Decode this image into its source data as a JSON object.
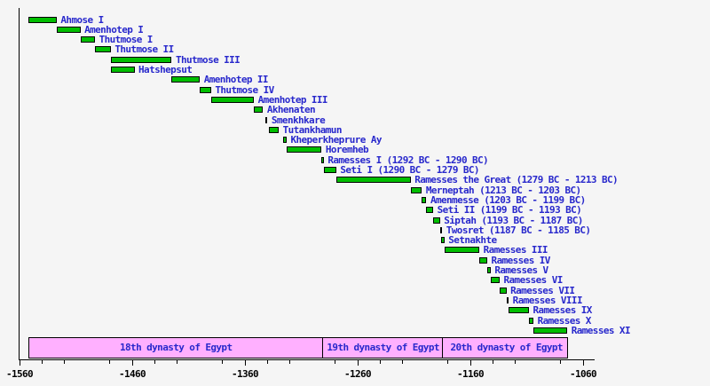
{
  "chart_data": {
    "type": "bar",
    "subtype": "gantt-timeline",
    "title": "",
    "xlabel": "",
    "ylabel": "",
    "grid": false,
    "legend": "none",
    "x_axis": {
      "min": -1560,
      "max": -1050,
      "major_ticks": [
        -1560,
        -1460,
        -1360,
        -1260,
        -1160,
        -1060
      ],
      "tick_labels": [
        "-1560",
        "-1460",
        "-1360",
        "-1260",
        "-1160",
        "-1060"
      ],
      "minor_tick_step": 20
    },
    "pharaohs": [
      {
        "label": "Ahmose I",
        "start": -1552,
        "end": -1527
      },
      {
        "label": "Amenhotep I",
        "start": -1527,
        "end": -1506
      },
      {
        "label": "Thutmose I",
        "start": -1506,
        "end": -1493
      },
      {
        "label": "Thutmose II",
        "start": -1493,
        "end": -1479
      },
      {
        "label": "Thutmose III",
        "start": -1479,
        "end": -1425
      },
      {
        "label": "Hatshepsut",
        "start": -1479,
        "end": -1458
      },
      {
        "label": "Amenhotep II",
        "start": -1425,
        "end": -1400
      },
      {
        "label": "Thutmose IV",
        "start": -1400,
        "end": -1390
      },
      {
        "label": "Amenhotep III",
        "start": -1390,
        "end": -1352
      },
      {
        "label": "Akhenaten",
        "start": -1352,
        "end": -1344
      },
      {
        "label": "Smenkhkare",
        "start": -1342,
        "end": -1340
      },
      {
        "label": "Tutankhamun",
        "start": -1339,
        "end": -1330
      },
      {
        "label": "Kheperkheprure Ay",
        "start": -1326,
        "end": -1323
      },
      {
        "label": "Horemheb",
        "start": -1323,
        "end": -1292
      },
      {
        "label": "Ramesses I (1292 BC - 1290 BC)",
        "start": -1292,
        "end": -1290
      },
      {
        "label": "Seti I (1290 BC - 1279 BC)",
        "start": -1290,
        "end": -1279
      },
      {
        "label": "Ramesses the Great (1279 BC - 1213 BC)",
        "start": -1279,
        "end": -1213
      },
      {
        "label": "Merneptah (1213 BC - 1203 BC)",
        "start": -1213,
        "end": -1203
      },
      {
        "label": "Amenmesse (1203 BC - 1199 BC)",
        "start": -1203,
        "end": -1199
      },
      {
        "label": "Seti II (1199 BC - 1193 BC)",
        "start": -1199,
        "end": -1193
      },
      {
        "label": "Siptah (1193 BC - 1187 BC)",
        "start": -1193,
        "end": -1187
      },
      {
        "label": "Twosret (1187 BC - 1185 BC)",
        "start": -1187,
        "end": -1185
      },
      {
        "label": "Setnakhte",
        "start": -1186,
        "end": -1183
      },
      {
        "label": "Ramesses III",
        "start": -1183,
        "end": -1152
      },
      {
        "label": "Ramesses IV",
        "start": -1152,
        "end": -1145
      },
      {
        "label": "Ramesses V",
        "start": -1145,
        "end": -1142
      },
      {
        "label": "Ramesses VI",
        "start": -1142,
        "end": -1134
      },
      {
        "label": "Ramesses VII",
        "start": -1134,
        "end": -1128
      },
      {
        "label": "Ramesses VIII",
        "start": -1128,
        "end": -1126
      },
      {
        "label": "Ramesses IX",
        "start": -1126,
        "end": -1108
      },
      {
        "label": "Ramesses X",
        "start": -1108,
        "end": -1104
      },
      {
        "label": "Ramesses XI",
        "start": -1104,
        "end": -1074
      }
    ],
    "dynasties": [
      {
        "label": "18th dynasty of Egypt",
        "start": -1552,
        "end": -1292
      },
      {
        "label": "19th dynasty of Egypt",
        "start": -1292,
        "end": -1186
      },
      {
        "label": "20th dynasty of Egypt",
        "start": -1186,
        "end": -1073
      }
    ],
    "colors": {
      "bar_fill": "#00be00",
      "bar_border": "#000000",
      "label_text": "#2828cc",
      "band_fill": "#ffb0ff",
      "band_text": "#2828cc",
      "axis": "#000000",
      "background": "#f5f5f5"
    }
  }
}
